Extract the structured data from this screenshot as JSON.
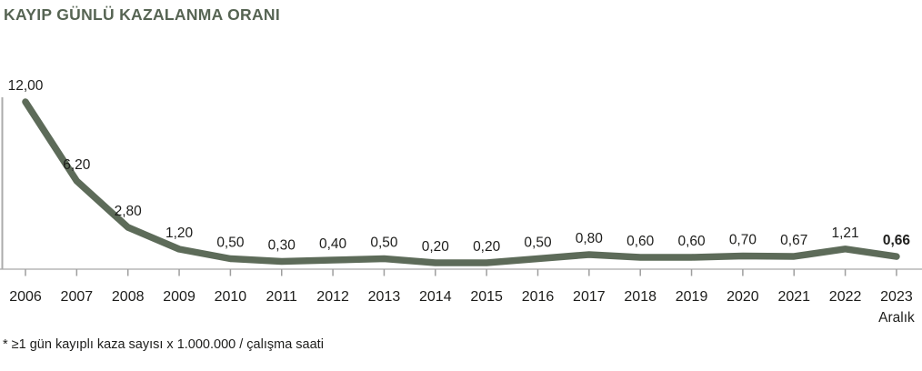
{
  "page": {
    "title": "KAYIP GÜNLÜ KAZALANMA ORANI",
    "footnote": "* ≥1 gün kayıplı kaza sayısı x 1.000.000 / çalışma saati"
  },
  "chart_data": {
    "type": "line",
    "title": "KAYIP GÜNLÜ KAZALANMA ORANI",
    "categories": [
      "2006",
      "2007",
      "2008",
      "2009",
      "2010",
      "2011",
      "2012",
      "2013",
      "2014",
      "2015",
      "2016",
      "2017",
      "2018",
      "2019",
      "2020",
      "2021",
      "2022",
      "2023"
    ],
    "values": [
      12.0,
      6.2,
      2.8,
      1.2,
      0.5,
      0.3,
      0.4,
      0.5,
      0.2,
      0.2,
      0.5,
      0.8,
      0.6,
      0.6,
      0.7,
      0.67,
      1.21,
      0.66
    ],
    "value_labels": [
      "12,00",
      "6,20",
      "2,80",
      "1,20",
      "0,50",
      "0,30",
      "0,40",
      "0,50",
      "0,20",
      "0,20",
      "0,50",
      "0,80",
      "0,60",
      "0,60",
      "0,70",
      "0,67",
      "1,21",
      "0,66"
    ],
    "last_label_bold": true,
    "x_sublabel": {
      "index": 17,
      "text": "Aralık"
    },
    "xlabel": "",
    "ylabel": "",
    "ylim": [
      0,
      12
    ],
    "grid": false,
    "legend": false,
    "footnote": "* ≥1 gün kayıplı kaza sayısı x 1.000.000 / çalışma saati",
    "colors": {
      "line": "#5d6b59",
      "x_axis": "#c9c9c9",
      "y_axis": "#ababab",
      "tick": "#9e9e9e",
      "label_text": "#1d1d1b",
      "title_text": "#566453"
    }
  }
}
